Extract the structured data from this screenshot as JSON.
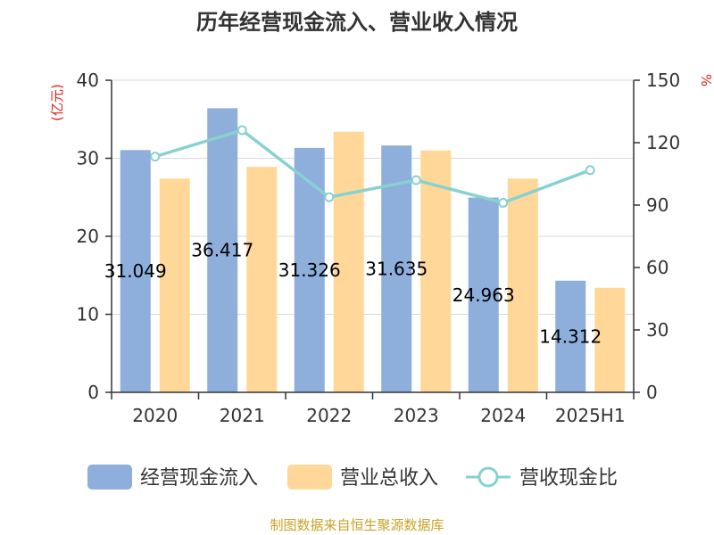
{
  "chart_data": {
    "type": "bar",
    "title": "历年经营现金流入、营业收入情况",
    "categories": [
      "2020",
      "2021",
      "2022",
      "2023",
      "2024",
      "2025H1"
    ],
    "left_axis": {
      "unit_label": "(亿元)",
      "ylim": [
        0,
        40
      ],
      "ticks": [
        "0",
        "10",
        "20",
        "30",
        "40"
      ]
    },
    "right_axis": {
      "unit_label": "%",
      "ylim": [
        0,
        150
      ],
      "ticks": [
        "0",
        "30",
        "60",
        "90",
        "120",
        "150"
      ]
    },
    "series": [
      {
        "name": "经营现金流入",
        "kind": "bar",
        "axis": "left",
        "color": "#8eaedb",
        "values": [
          31.049,
          36.417,
          31.326,
          31.635,
          24.963,
          14.312
        ],
        "labels": [
          "31.049",
          "36.417",
          "31.326",
          "31.635",
          "24.963",
          "14.312"
        ]
      },
      {
        "name": "营业总收入",
        "kind": "bar",
        "axis": "left",
        "color": "#ffd899",
        "values": [
          27.4,
          28.9,
          33.4,
          31.0,
          27.4,
          13.4
        ]
      },
      {
        "name": "营收现金比",
        "kind": "line",
        "axis": "right",
        "color": "#88d1d1",
        "values": [
          113.3,
          126.0,
          93.8,
          102.0,
          91.1,
          106.8
        ]
      }
    ],
    "grid": true,
    "legend_position": "bottom"
  },
  "footer": {
    "source": "制图数据来自恒生聚源数据库"
  }
}
